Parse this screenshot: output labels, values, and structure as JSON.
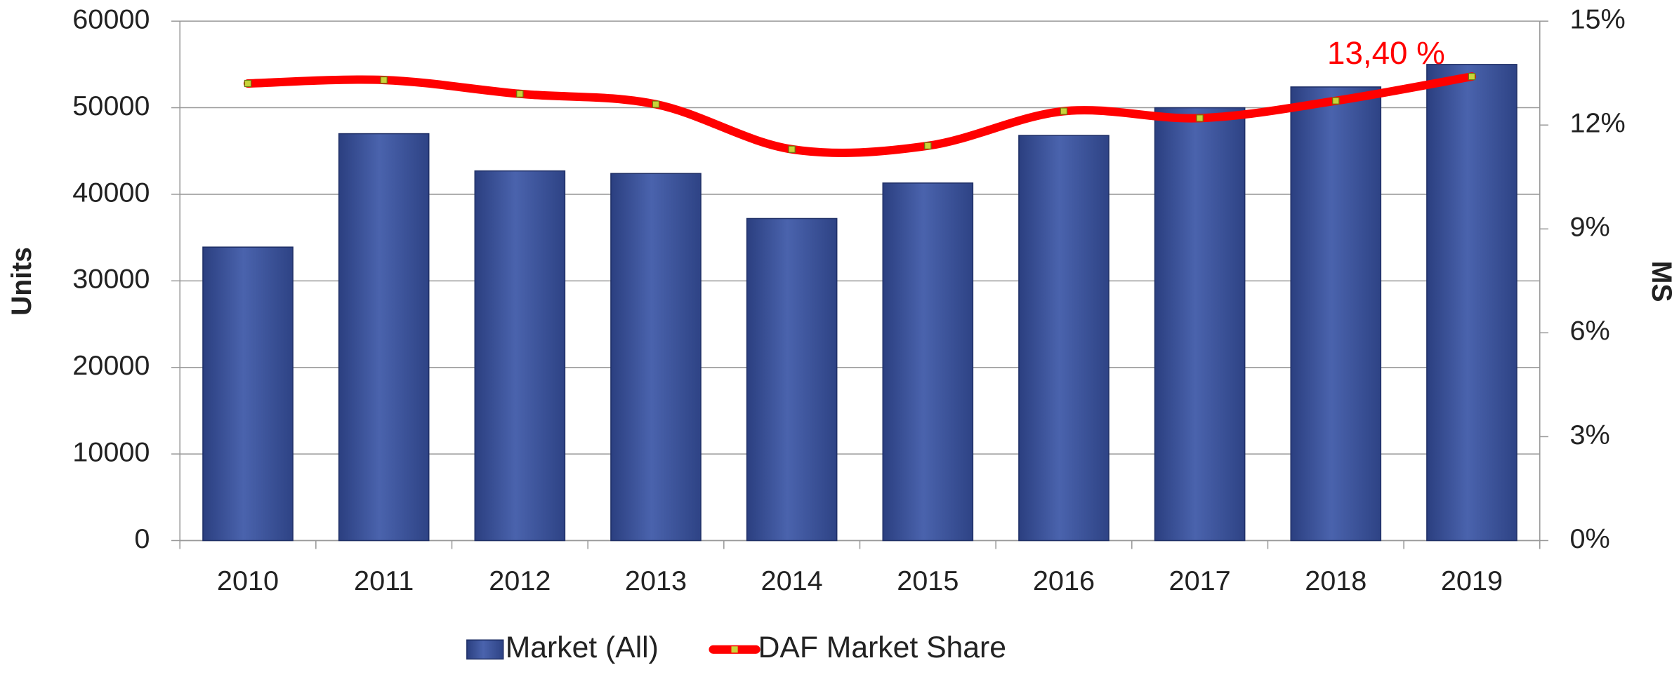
{
  "chart_data": {
    "type": "bar",
    "categories": [
      "2010",
      "2011",
      "2012",
      "2013",
      "2014",
      "2015",
      "2016",
      "2017",
      "2018",
      "2019"
    ],
    "series": [
      {
        "name": "Market (All)",
        "color": "#3f57a0",
        "type": "bar",
        "values": [
          33900,
          47000,
          42700,
          42400,
          37200,
          41300,
          46800,
          50000,
          52400,
          55000
        ]
      },
      {
        "name": "DAF Market Share",
        "color": "#ff0000",
        "type": "line",
        "axis": "y2",
        "values": [
          13.2,
          13.3,
          12.9,
          12.6,
          11.3,
          11.4,
          12.4,
          12.2,
          12.7,
          13.4
        ],
        "value_labels": [
          null,
          null,
          null,
          null,
          null,
          null,
          null,
          null,
          null,
          "13,40 %"
        ]
      }
    ],
    "ylabel": "Units",
    "y2label": "MS",
    "ylim": [
      0,
      60000
    ],
    "yticks": [
      0,
      10000,
      20000,
      30000,
      40000,
      50000,
      60000
    ],
    "y2lim": [
      0,
      15
    ],
    "y2ticks": [
      {
        "value": 0,
        "label": "0%"
      },
      {
        "value": 3,
        "label": "3%"
      },
      {
        "value": 6,
        "label": "6%"
      },
      {
        "value": 9,
        "label": "9%"
      },
      {
        "value": 12,
        "label": "12%"
      },
      {
        "value": 15,
        "label": "15%"
      }
    ],
    "grid": true,
    "legend": "bottom"
  }
}
